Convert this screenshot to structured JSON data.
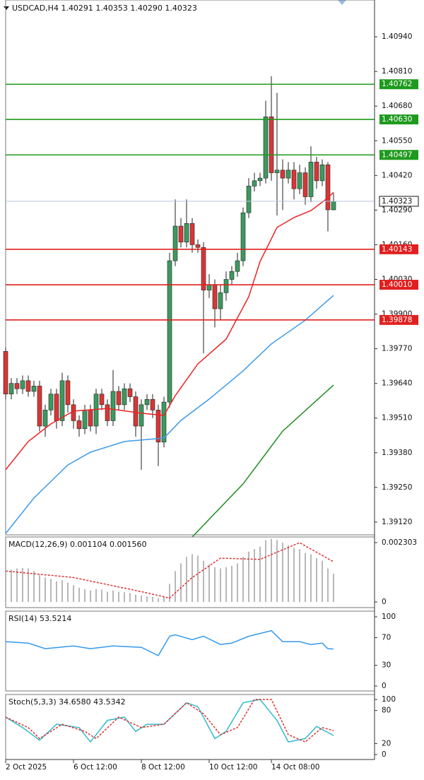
{
  "chart_data": [
    {
      "type": "candlestick",
      "title": "USDCAD,H4  1.40291 1.40353 1.40290 1.40323",
      "open": [
        1.3976,
        1.396,
        1.3964,
        1.3962,
        1.3965,
        1.3961,
        1.3963,
        1.3948,
        1.3954,
        1.396,
        1.395,
        1.3965,
        1.3956,
        1.395,
        1.3947,
        1.3954,
        1.3948,
        1.396,
        1.3956,
        1.395,
        1.3961,
        1.3956,
        1.3962,
        1.3959,
        1.3948,
        1.3956,
        1.3958,
        1.3954,
        1.3942,
        1.3957,
        1.401,
        1.4023,
        1.4017,
        1.4024,
        1.4016,
        1.4015,
        1.3999,
        1.4001,
        1.3992,
        1.3998,
        1.4003,
        1.4006,
        1.401,
        1.4028,
        1.4038,
        1.404,
        1.4041,
        1.4064,
        1.4043,
        1.4044,
        1.4041,
        1.4044,
        1.4037,
        1.4043,
        1.4034,
        1.4047,
        1.404,
        1.4046,
        1.40291
      ],
      "high": [
        1.39775,
        1.3966,
        1.3966,
        1.3967,
        1.3967,
        1.3965,
        1.3965,
        1.3956,
        1.3962,
        1.3962,
        1.3968,
        1.3967,
        1.3958,
        1.3952,
        1.3956,
        1.3956,
        1.3962,
        1.3962,
        1.3958,
        1.3969,
        1.3963,
        1.3964,
        1.3964,
        1.3961,
        1.3958,
        1.396,
        1.396,
        1.3956,
        1.3959,
        1.4013,
        1.4033,
        1.4026,
        1.4033,
        1.4026,
        1.4018,
        1.4017,
        1.4005,
        1.4003,
        1.4001,
        1.4006,
        1.4008,
        1.4013,
        1.403,
        1.4041,
        1.4043,
        1.4043,
        1.407,
        1.40792,
        1.4073,
        1.4048,
        1.4047,
        1.4047,
        1.4046,
        1.4045,
        1.40529,
        1.4049,
        1.4048,
        1.4047,
        1.40353
      ],
      "low": [
        1.3958,
        1.3958,
        1.396,
        1.396,
        1.3959,
        1.3959,
        1.3946,
        1.3944,
        1.3952,
        1.3947,
        1.3948,
        1.3953,
        1.3947,
        1.3944,
        1.3945,
        1.3946,
        1.3945,
        1.3954,
        1.3948,
        1.3948,
        1.3954,
        1.3954,
        1.3957,
        1.3944,
        1.39316,
        1.3954,
        1.3951,
        1.3933,
        1.394,
        1.3955,
        1.4008,
        1.4015,
        1.4015,
        1.4013,
        1.4013,
        1.39753,
        1.3996,
        1.3985,
        1.3988,
        1.3995,
        1.4001,
        1.4004,
        1.4008,
        1.4026,
        1.4036,
        1.4038,
        1.4039,
        1.404,
        1.4027,
        1.4029,
        1.4039,
        1.4033,
        1.4035,
        1.4031,
        1.4032,
        1.4037,
        1.4038,
        1.4021,
        1.4029
      ],
      "close": [
        1.396,
        1.3964,
        1.3962,
        1.3965,
        1.3961,
        1.3963,
        1.3948,
        1.3954,
        1.396,
        1.395,
        1.3965,
        1.3956,
        1.395,
        1.3947,
        1.3954,
        1.3948,
        1.396,
        1.3956,
        1.395,
        1.3961,
        1.3956,
        1.3962,
        1.3959,
        1.3948,
        1.3956,
        1.3958,
        1.3954,
        1.3942,
        1.3957,
        1.401,
        1.4023,
        1.4017,
        1.4024,
        1.4016,
        1.4015,
        1.3999,
        1.4001,
        1.3992,
        1.3998,
        1.4003,
        1.4006,
        1.401,
        1.4028,
        1.4038,
        1.404,
        1.4041,
        1.4064,
        1.4043,
        1.4044,
        1.4041,
        1.4044,
        1.4037,
        1.4043,
        1.4034,
        1.4047,
        1.404,
        1.4046,
        1.40291,
        1.40323
      ],
      "up_color": "#3c9a5f",
      "down_color": "#d93636",
      "lines": [
        {
          "color": "#ee2222",
          "x": [
            0,
            4,
            8,
            12,
            18,
            24,
            28,
            30,
            34,
            39,
            43,
            45,
            48,
            51,
            54,
            57,
            58
          ],
          "values": [
            1.39316,
            1.39422,
            1.39488,
            1.39536,
            1.39546,
            1.39528,
            1.3952,
            1.39594,
            1.39713,
            1.39806,
            1.39965,
            1.40097,
            1.40225,
            1.40262,
            1.40288,
            1.40336,
            1.40357
          ]
        },
        {
          "color": "#3d9be9",
          "x": [
            0,
            5,
            11,
            15,
            21,
            28,
            31,
            36,
            42,
            47,
            53,
            58
          ],
          "values": [
            1.39077,
            1.3921,
            1.39334,
            1.39382,
            1.39422,
            1.39435,
            1.39501,
            1.39581,
            1.39687,
            1.39788,
            1.39877,
            1.3997
          ]
        },
        {
          "color": "#1e8c1e",
          "x": [
            33,
            42,
            49,
            58
          ],
          "values": [
            1.39064,
            1.39263,
            1.39461,
            1.39634
          ]
        }
      ],
      "levels": [
        {
          "price": 1.40762,
          "color": "#1e9a1e"
        },
        {
          "price": 1.4063,
          "label": "1.40630",
          "color": "#1e9a1e"
        },
        {
          "price": 1.40497,
          "color": "#1e9a1e"
        },
        {
          "price": 1.40143,
          "color": "#e02020"
        },
        {
          "price": 1.4001,
          "label": "1.40010",
          "color": "#e02020"
        },
        {
          "price": 1.39878,
          "color": "#e02020"
        }
      ],
      "current": 1.40323,
      "xlim": [
        -1,
        65.25
      ],
      "ylim": [
        1.39072,
        1.41078
      ],
      "yticks": [
        {
          "value": 1.4094,
          "label": "1.40940"
        },
        {
          "value": 1.4081,
          "label": "1.40810"
        },
        {
          "value": 1.4068,
          "label": "1.40680"
        },
        {
          "value": 1.4055,
          "label": "1.40550"
        },
        {
          "value": 1.4042,
          "label": "1.40420"
        },
        {
          "value": 1.4029,
          "label": "1.40290"
        },
        {
          "value": 1.4016,
          "label": "1.40160"
        },
        {
          "value": 1.4003,
          "label": "1.40030"
        },
        {
          "value": 1.399,
          "label": "1.39900"
        },
        {
          "value": 1.3977,
          "label": "1.39770"
        },
        {
          "value": 1.3964,
          "label": "1.39640"
        },
        {
          "value": 1.3951,
          "label": "1.39510"
        },
        {
          "value": 1.3938,
          "label": "1.39380"
        },
        {
          "value": 1.3925,
          "label": "1.39250"
        },
        {
          "value": 1.3912,
          "label": "1.39120"
        }
      ],
      "xticks": [
        {
          "value": 0,
          "label": "2 Oct 2025"
        },
        {
          "value": 12,
          "label": "6 Oct 12:00"
        },
        {
          "value": 24,
          "label": "8 Oct 12:00"
        },
        {
          "value": 36,
          "label": "10 Oct 12:00"
        },
        {
          "value": 47,
          "label": "14 Oct 08:00"
        }
      ]
    },
    {
      "type": "macd",
      "title": "MACD(12,26,9) 0.001104 0.001560",
      "values": [
        0.0012,
        0.00125,
        0.0013,
        0.00132,
        0.0013,
        0.0012,
        0.00105,
        0.00095,
        0.0009,
        0.0008,
        0.00085,
        0.00075,
        0.00065,
        0.00055,
        0.0005,
        0.00045,
        0.0005,
        0.00048,
        0.0004,
        0.00045,
        0.0004,
        0.00038,
        0.00035,
        0.00028,
        0.00025,
        0.00022,
        0.0002,
        0.00015,
        0.0002,
        0.0007,
        0.0012,
        0.0015,
        0.00175,
        0.00185,
        0.0018,
        0.0016,
        0.00145,
        0.00135,
        0.0013,
        0.00135,
        0.0014,
        0.0015,
        0.00175,
        0.00195,
        0.00205,
        0.00215,
        0.0024,
        0.00245,
        0.0024,
        0.0023,
        0.0022,
        0.0021,
        0.00205,
        0.0019,
        0.00185,
        0.0017,
        0.0016,
        0.0013,
        0.001104
      ],
      "color": "#b8b8b8",
      "signal": {
        "color": "#e03030",
        "x": [
          0,
          12,
          24,
          29,
          33,
          38,
          45,
          52,
          58
        ],
        "values": [
          0.0012,
          0.00095,
          0.0004,
          0.00015,
          0.00095,
          0.0017,
          0.00165,
          0.0023,
          0.00156
        ]
      },
      "ylim": [
        -0.000219,
        0.002522
      ],
      "yticks": [
        0,
        0.002303
      ]
    },
    {
      "type": "line",
      "title": "RSI(14) 53.5214",
      "series": [
        {
          "color": "#3399ee",
          "x": [
            0,
            4,
            7,
            12,
            15,
            19,
            24,
            27,
            29,
            30,
            33,
            35,
            38,
            40,
            43,
            47,
            49,
            52,
            54,
            56,
            57,
            58
          ],
          "values": [
            64,
            62,
            54,
            58,
            54,
            58,
            56,
            44,
            72,
            74,
            67,
            72,
            60,
            62,
            72,
            80,
            64,
            64,
            60,
            62,
            54,
            53.5214
          ]
        }
      ],
      "ylim": [
        -7.1,
        108.2
      ],
      "yticks": [
        0,
        30,
        70,
        100
      ]
    },
    {
      "type": "line",
      "title": "Stoch(5,3,3) 34.6580 43.5342",
      "series": [
        {
          "color": "#33bbcc",
          "x": [
            0,
            3,
            6,
            9,
            13,
            15,
            18,
            21,
            23,
            25,
            28,
            32,
            34,
            37,
            39,
            42,
            45,
            48,
            50,
            53,
            55,
            58
          ],
          "values": [
            68,
            49,
            26,
            55,
            49,
            23,
            62,
            68,
            42,
            55,
            55,
            94,
            87,
            29,
            42,
            94,
            100,
            62,
            23,
            29,
            51,
            34.658
          ]
        },
        {
          "color": "#e03030",
          "dash": true,
          "x": [
            0,
            4,
            6,
            10,
            14,
            16,
            20,
            24,
            28,
            32,
            35,
            38,
            41,
            44,
            47,
            50,
            53,
            56,
            58
          ],
          "values": [
            68,
            49,
            29,
            55,
            42,
            29,
            68,
            49,
            55,
            94,
            74,
            36,
            49,
            100,
            100,
            36,
            23,
            49,
            43.5342
          ]
        }
      ],
      "ylim": [
        -9,
        109
      ],
      "yticks": [
        0,
        20,
        80,
        100
      ]
    }
  ]
}
